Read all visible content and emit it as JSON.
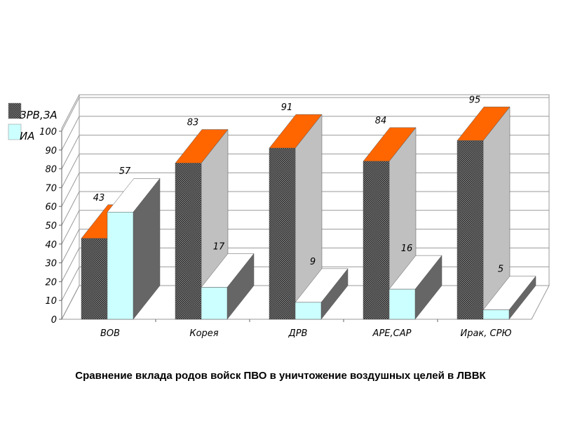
{
  "chart_data": {
    "type": "bar",
    "style": "3d-clustered-column",
    "categories": [
      "ВОВ",
      "Корея",
      "ДРВ",
      "АРЕ,САР",
      "Ирак, СРЮ"
    ],
    "series": [
      {
        "name": "ЗРВ,ЗА",
        "values": [
          43,
          83,
          91,
          84,
          95
        ],
        "color": "#555555",
        "top_color": "#ff6600",
        "side_color": "#c0c0c0"
      },
      {
        "name": "ИА",
        "values": [
          57,
          17,
          9,
          16,
          5
        ],
        "color": "#ccffff",
        "top_color": "#ffffff",
        "side_color": "#666666"
      }
    ],
    "ylim": [
      0,
      100
    ],
    "yticks": [
      0,
      10,
      20,
      30,
      40,
      50,
      60,
      70,
      80,
      90,
      100
    ],
    "grid": true,
    "legend": "top-left",
    "data_labels": true
  },
  "caption": "Сравнение вклада родов войск ПВО в уничтожение воздушных целей в ЛВВК"
}
